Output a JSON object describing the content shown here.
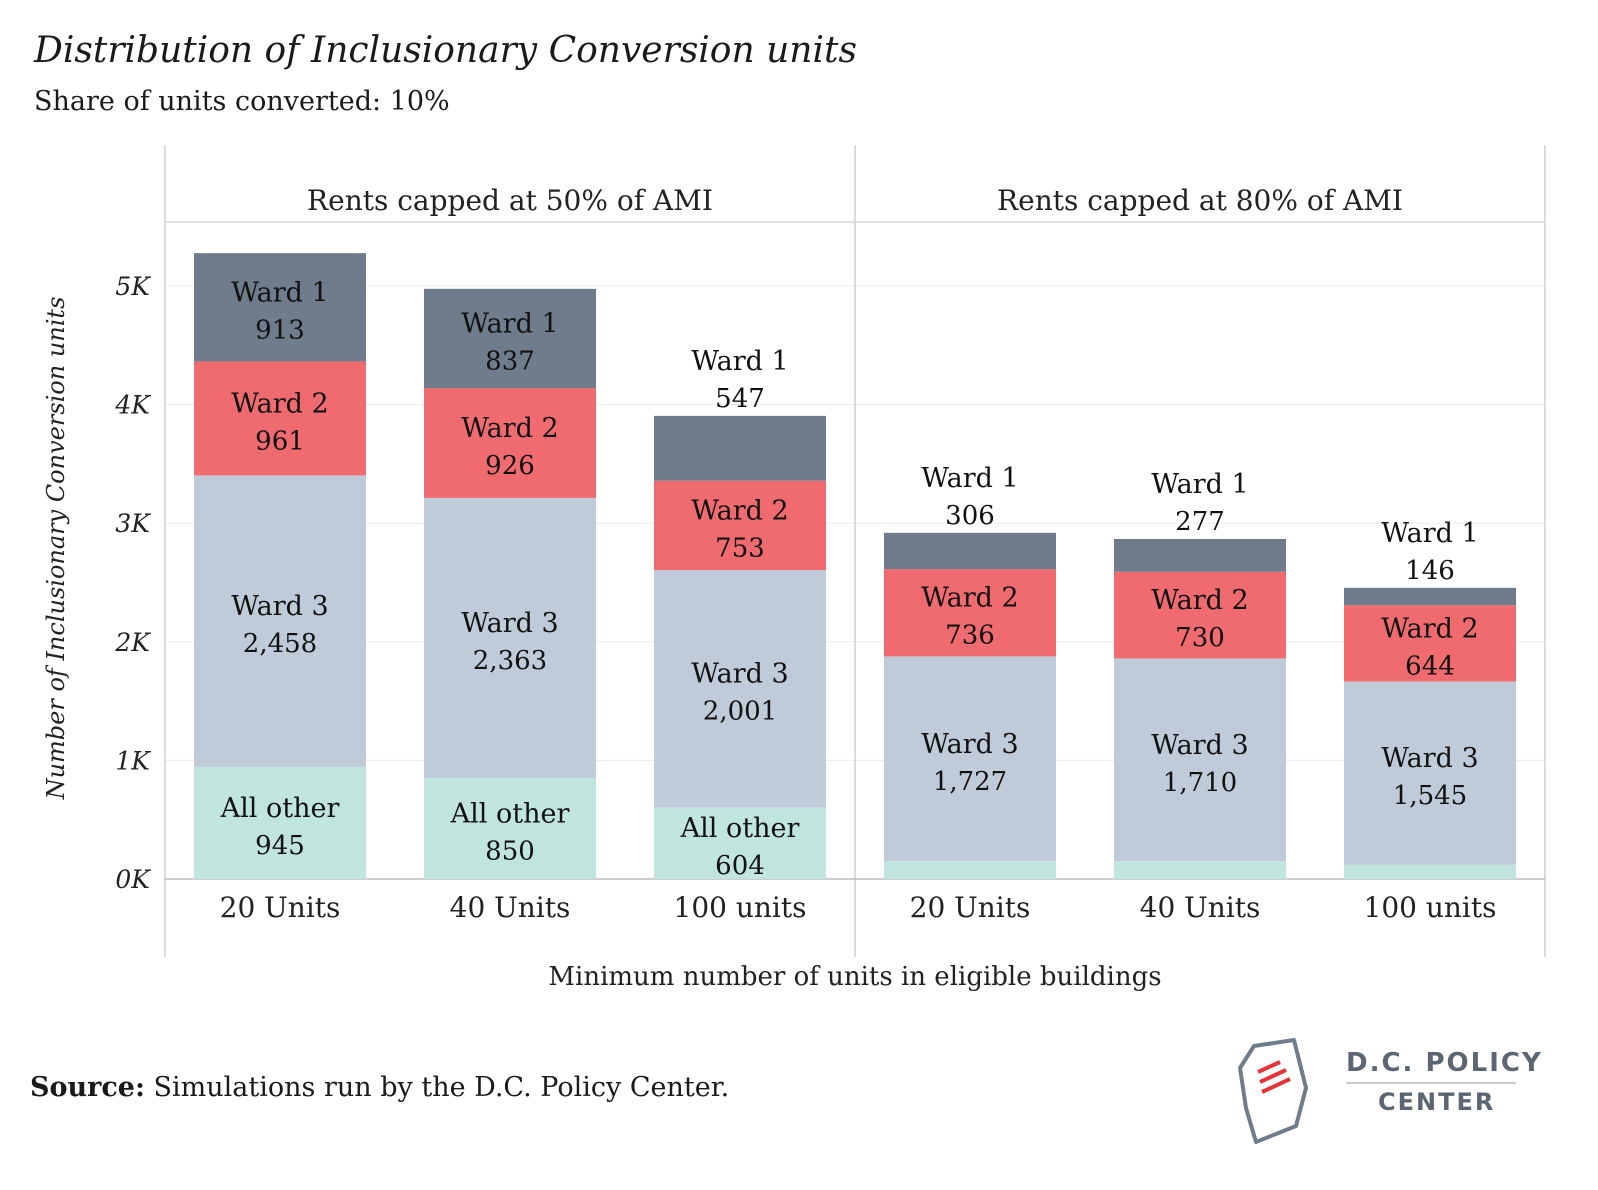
{
  "title": "Distribution of Inclusionary Conversion units",
  "subtitle": "Share of units converted: 10%",
  "source": {
    "label": "Source:",
    "text": " Simulations run by the D.C. Policy Center."
  },
  "logo": {
    "line1": "D.C. POLICY",
    "line2": "CENTER"
  },
  "colors": {
    "ward1": "#6e7c8b",
    "ward2": "#ef6b6f",
    "ward3": "#bfcbd8",
    "other": "#bfe5de"
  },
  "chart_data": {
    "type": "bar",
    "stacked": true,
    "ylabel": "Number of Inclusionary Conversion units",
    "xlabel": "Minimum number of units in eligible buildings",
    "ylim": [
      0,
      5300
    ],
    "y_ticks": [
      0,
      1000,
      2000,
      3000,
      4000,
      5000
    ],
    "y_tick_labels": [
      "0K",
      "1K",
      "2K",
      "3K",
      "4K",
      "5K"
    ],
    "panels": [
      {
        "title": "Rents capped at 50% of AMI",
        "categories": [
          "20 Units",
          "40 Units",
          "100 units"
        ],
        "series": [
          {
            "name": "All other",
            "values": [
              945,
              850,
              604
            ],
            "labels": [
              "945",
              "850",
              "604"
            ]
          },
          {
            "name": "Ward 3",
            "values": [
              2458,
              2363,
              2001
            ],
            "labels": [
              "2,458",
              "2,363",
              "2,001"
            ]
          },
          {
            "name": "Ward 2",
            "values": [
              961,
              926,
              753
            ],
            "labels": [
              "961",
              "926",
              "753"
            ]
          },
          {
            "name": "Ward 1",
            "values": [
              913,
              837,
              547
            ],
            "labels": [
              "913",
              "837",
              "547"
            ]
          }
        ]
      },
      {
        "title": "Rents capped at 80% of AMI",
        "categories": [
          "20 Units",
          "40 Units",
          "100 units"
        ],
        "series": [
          {
            "name": "All other",
            "values": [
              150,
              150,
              120
            ],
            "labels": [
              "",
              "",
              ""
            ]
          },
          {
            "name": "Ward 3",
            "values": [
              1727,
              1710,
              1545
            ],
            "labels": [
              "1,727",
              "1,710",
              "1,545"
            ]
          },
          {
            "name": "Ward 2",
            "values": [
              736,
              730,
              644
            ],
            "labels": [
              "736",
              "730",
              "644"
            ]
          },
          {
            "name": "Ward 1",
            "values": [
              306,
              277,
              146
            ],
            "labels": [
              "306",
              "277",
              "146"
            ]
          }
        ]
      }
    ]
  }
}
